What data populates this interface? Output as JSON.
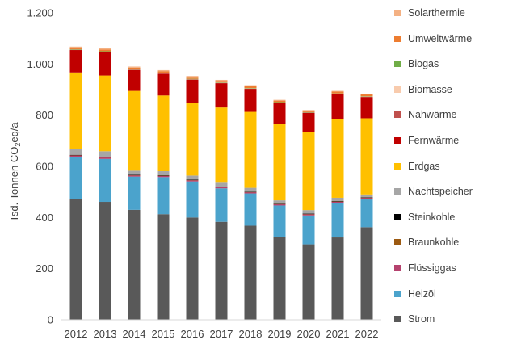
{
  "chart_data": {
    "type": "bar",
    "stacked": true,
    "ylabel_main": "Tsd. Tonnen CO",
    "ylabel_sub": "2",
    "ylabel_tail": "eq/a",
    "ylim": [
      0,
      1200
    ],
    "yticks": [
      0,
      200,
      400,
      600,
      800,
      1000,
      1200
    ],
    "ytick_labels": [
      "0",
      "200",
      "400",
      "600",
      "800",
      "1.000",
      "1.200"
    ],
    "grid": false,
    "legend_position": "right",
    "categories": [
      "2012",
      "2013",
      "2014",
      "2015",
      "2016",
      "2017",
      "2018",
      "2019",
      "2020",
      "2021",
      "2022"
    ],
    "series": [
      {
        "name": "Strom",
        "color": "#595959",
        "values": [
          472,
          461,
          430,
          413,
          400,
          383,
          368,
          323,
          295,
          322,
          362
        ]
      },
      {
        "name": "Heizöl",
        "color": "#4BA3CC",
        "values": [
          165,
          168,
          130,
          145,
          141,
          131,
          126,
          124,
          113,
          135,
          110
        ]
      },
      {
        "name": "Flüssiggas",
        "color": "#B5426E",
        "values": [
          6,
          6,
          5,
          5,
          5,
          5,
          5,
          5,
          5,
          5,
          5
        ]
      },
      {
        "name": "Braunkohle",
        "color": "#9C5A12",
        "values": [
          1,
          1,
          1,
          1,
          1,
          1,
          1,
          1,
          1,
          1,
          1
        ]
      },
      {
        "name": "Steinkohle",
        "color": "#000000",
        "values": [
          1,
          1,
          1,
          1,
          1,
          1,
          1,
          1,
          1,
          1,
          1
        ]
      },
      {
        "name": "Nachtspeicher",
        "color": "#A6A6A6",
        "values": [
          23,
          22,
          16,
          16,
          16,
          15,
          15,
          13,
          14,
          13,
          11
        ]
      },
      {
        "name": "Erdgas",
        "color": "#FFC000",
        "values": [
          299,
          296,
          312,
          296,
          283,
          294,
          297,
          298,
          305,
          308,
          298
        ]
      },
      {
        "name": "Fernwärme",
        "color": "#C00000",
        "values": [
          88,
          92,
          82,
          85,
          92,
          95,
          90,
          83,
          75,
          97,
          83
        ]
      },
      {
        "name": "Nahwärme",
        "color": "#C0504D",
        "values": [
          1,
          1,
          1,
          1,
          1,
          1,
          1,
          1,
          1,
          1,
          1
        ]
      },
      {
        "name": "Biomasse",
        "color": "#F8CBAD",
        "values": [
          1,
          1,
          1,
          1,
          1,
          1,
          1,
          1,
          1,
          1,
          1
        ]
      },
      {
        "name": "Biogas",
        "color": "#70AD47",
        "values": [
          1,
          1,
          1,
          1,
          1,
          1,
          1,
          1,
          1,
          1,
          1
        ]
      },
      {
        "name": "Umweltwärme",
        "color": "#ED7D31",
        "values": [
          5,
          7,
          6,
          7,
          7,
          6,
          7,
          6,
          5,
          7,
          7
        ]
      },
      {
        "name": "Solarthermie",
        "color": "#F4B183",
        "values": [
          5,
          5,
          4,
          4,
          4,
          4,
          4,
          3,
          3,
          3,
          3
        ]
      }
    ]
  }
}
